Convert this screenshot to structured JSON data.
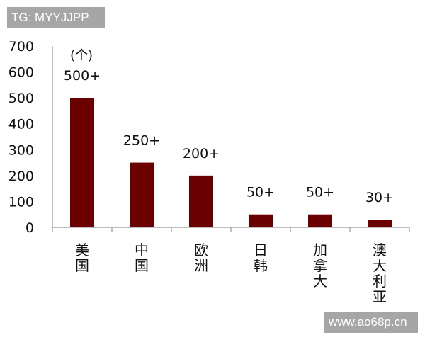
{
  "watermarks": {
    "top_left": "TG: MYYJJPP",
    "bottom_right": "www.ao68p.cn"
  },
  "chart_data": {
    "type": "bar",
    "title": "",
    "unit_label": "(个)",
    "xlabel": "",
    "ylabel": "",
    "ylim": [
      0,
      700
    ],
    "yticks": [
      0,
      100,
      200,
      300,
      400,
      500,
      600,
      700
    ],
    "grid": false,
    "categories": [
      "美国",
      "中国",
      "欧洲",
      "日韩",
      "加拿大",
      "澳大利亚"
    ],
    "values": [
      500,
      250,
      200,
      50,
      50,
      30
    ],
    "data_labels": [
      "500+",
      "250+",
      "200+",
      "50+",
      "50+",
      "30+"
    ],
    "bar_color": "#6b0000"
  }
}
